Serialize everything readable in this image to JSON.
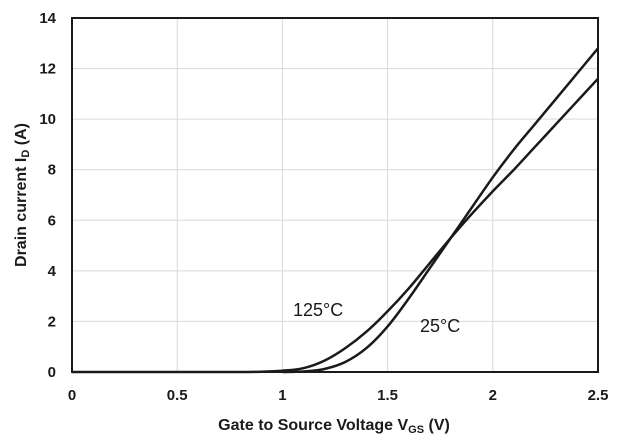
{
  "chart_data": {
    "type": "line",
    "xlabel": {
      "main": "Gate to  Source Voltage V",
      "sub": "GS",
      "unit": " (V)"
    },
    "ylabel": {
      "main": "Drain current I",
      "sub": "D",
      "unit": " (A)"
    },
    "xlim": [
      0,
      2.5
    ],
    "ylim": [
      0,
      14
    ],
    "xticks": [
      0,
      0.5,
      1,
      1.5,
      2,
      2.5
    ],
    "xtick_labels": [
      "0",
      "0.5",
      "1",
      "1.5",
      "2",
      "2.5"
    ],
    "yticks": [
      0,
      2,
      4,
      6,
      8,
      10,
      12,
      14
    ],
    "ytick_labels": [
      "0",
      "2",
      "4",
      "6",
      "8",
      "10",
      "12",
      "14"
    ],
    "grid": true,
    "series": [
      {
        "name": "125°C",
        "color": "#1a1a1a",
        "x": [
          0.8,
          0.9,
          1.0,
          1.1,
          1.2,
          1.3,
          1.4,
          1.5,
          1.6,
          1.7,
          1.8,
          1.9,
          2.0,
          2.1,
          2.2,
          2.3,
          2.4,
          2.5
        ],
        "y": [
          0,
          0.01,
          0.05,
          0.15,
          0.45,
          0.95,
          1.6,
          2.4,
          3.3,
          4.3,
          5.3,
          6.25,
          7.15,
          8.0,
          8.9,
          9.8,
          10.7,
          11.6
        ]
      },
      {
        "name": "25°C",
        "color": "#1a1a1a",
        "x": [
          1.0,
          1.1,
          1.2,
          1.3,
          1.4,
          1.5,
          1.6,
          1.7,
          1.8,
          1.9,
          2.0,
          2.1,
          2.2,
          2.3,
          2.4,
          2.5
        ],
        "y": [
          0,
          0.02,
          0.12,
          0.4,
          0.95,
          1.8,
          2.9,
          4.1,
          5.3,
          6.5,
          7.7,
          8.8,
          9.8,
          10.8,
          11.8,
          12.8
        ]
      }
    ],
    "annotations": [
      {
        "text": "125°C",
        "series": "125°C"
      },
      {
        "text": "25°C",
        "series": "25°C"
      }
    ]
  }
}
